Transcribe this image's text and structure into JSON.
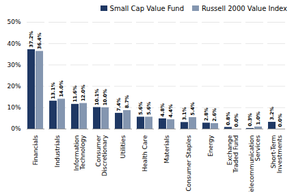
{
  "chart_data": {
    "type": "bar",
    "categories": [
      "Financials",
      "Industrials",
      "Information\nTechnology",
      "Consumer\nDiscretionary",
      "Utilities",
      "Health Care",
      "Materials",
      "Consumer Staples",
      "Energy",
      "Exchange\nTraded Fund",
      "Telecommunication\nServices",
      "Short-Term\nInvestments"
    ],
    "series": [
      {
        "name": "Small Cap Value Fund",
        "color": "#1F3864",
        "values": [
          37.2,
          13.1,
          11.6,
          10.1,
          7.4,
          5.6,
          4.8,
          3.1,
          2.8,
          0.8,
          0.3,
          3.2
        ],
        "value_labels": [
          "37.2%",
          "13.1%",
          "11.6%",
          "10.1%",
          "7.4%",
          "5.6%",
          "4.8%",
          "3.1%",
          "2.8%",
          "0.8%",
          "0.3%",
          "3.2%"
        ]
      },
      {
        "name": "Russell 2000 Value Index",
        "color": "#8496B0",
        "values": [
          36.4,
          14.0,
          12.0,
          10.0,
          8.7,
          5.6,
          4.4,
          5.4,
          2.6,
          0.0,
          1.0,
          0.0
        ],
        "value_labels": [
          "36.4%",
          "14.0%",
          "12.0%",
          "10.0%",
          "8.7%",
          "5.6%",
          "4.4%",
          "5.4%",
          "2.6%",
          "0.0%",
          "1.0%",
          "0.0%"
        ]
      }
    ],
    "ylim": [
      0,
      50
    ],
    "yticks": [
      {
        "value": 0,
        "label": "0%"
      },
      {
        "value": 10,
        "label": "10%"
      },
      {
        "value": 20,
        "label": "20%"
      },
      {
        "value": 30,
        "label": "30%"
      },
      {
        "value": 40,
        "label": "40%"
      },
      {
        "value": 50,
        "label": "50%"
      }
    ],
    "grid": true,
    "legend": "upper right",
    "data_labels": true
  }
}
